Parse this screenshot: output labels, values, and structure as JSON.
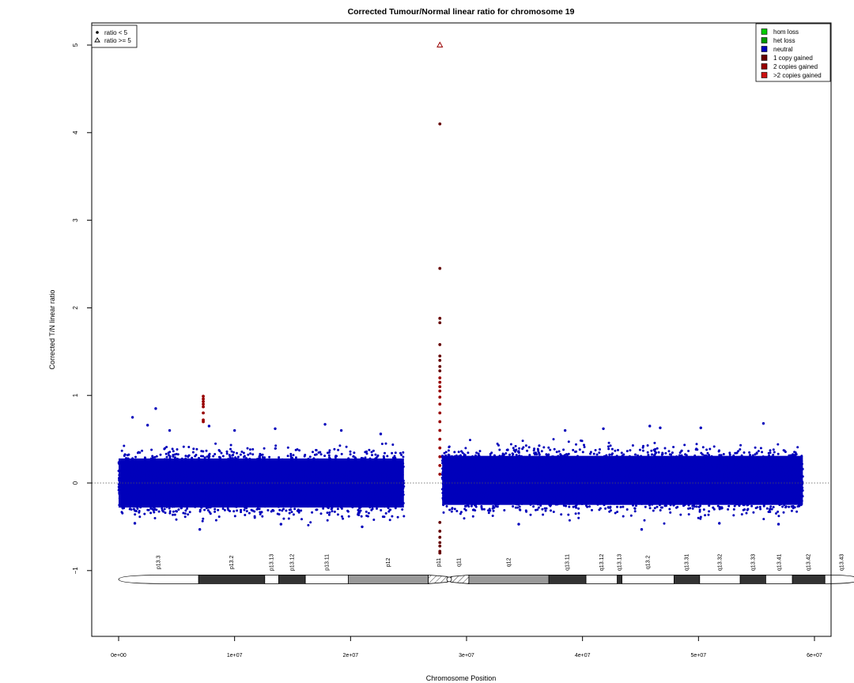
{
  "chart_data": {
    "type": "scatter",
    "title": "Corrected Tumour/Normal linear ratio for chromosome  19",
    "xlabel": "Chromosome Position",
    "ylabel": "Corrected T/N linear ratio",
    "xlim": [
      -1500000,
      61500000
    ],
    "ylim": [
      -1.75,
      5.25
    ],
    "x_ticks": [
      0,
      10000000,
      20000000,
      30000000,
      40000000,
      50000000,
      60000000
    ],
    "x_tick_labels": [
      "0e+00",
      "1e+07",
      "2e+07",
      "3e+07",
      "4e+07",
      "5e+07",
      "6e+07"
    ],
    "y_ticks": [
      -1,
      0,
      1,
      2,
      3,
      4,
      5
    ],
    "y_tick_labels": [
      "−1",
      "0",
      "1",
      "2",
      "3",
      "4",
      "5"
    ],
    "reference_line_y": 0,
    "shape_legend": {
      "placement": "top-left",
      "entries": [
        {
          "label": "ratio < 5",
          "symbol": "dot"
        },
        {
          "label": "ratio >= 5",
          "symbol": "triangle"
        }
      ]
    },
    "color_legend": {
      "placement": "top-right",
      "entries": [
        {
          "label": "hom loss",
          "color": "#00cc00"
        },
        {
          "label": "het loss",
          "color": "#009900"
        },
        {
          "label": "neutral",
          "color": "#0000bb"
        },
        {
          "label": "1 copy gained",
          "color": "#660000"
        },
        {
          "label": "2 copies gained",
          "color": "#990000"
        },
        {
          "label": ">2 copies gained",
          "color": "#cc1111"
        }
      ]
    },
    "series": [
      {
        "status": "neutral",
        "color": "#0000bb",
        "regions": [
          {
            "x_range": [
              0,
              24600000
            ],
            "y_center": 0.0,
            "y_spread": 0.28
          },
          {
            "x_range": [
              27900000,
              59000000
            ],
            "y_center": 0.03,
            "y_spread": 0.28
          }
        ],
        "outliers": [
          {
            "x": 1200000,
            "y": 0.75
          },
          {
            "x": 3200000,
            "y": 0.85
          },
          {
            "x": 2500000,
            "y": 0.66
          },
          {
            "x": 4400000,
            "y": 0.6
          },
          {
            "x": 7800000,
            "y": 0.65
          },
          {
            "x": 10000000,
            "y": 0.6
          },
          {
            "x": 13500000,
            "y": 0.62
          },
          {
            "x": 17800000,
            "y": 0.67
          },
          {
            "x": 19200000,
            "y": 0.6
          },
          {
            "x": 22600000,
            "y": 0.56
          },
          {
            "x": 38500000,
            "y": 0.6
          },
          {
            "x": 41800000,
            "y": 0.62
          },
          {
            "x": 45800000,
            "y": 0.65
          },
          {
            "x": 46700000,
            "y": 0.63
          },
          {
            "x": 50200000,
            "y": 0.63
          },
          {
            "x": 55600000,
            "y": 0.68
          },
          {
            "x": 1400000,
            "y": -0.46
          },
          {
            "x": 7000000,
            "y": -0.53
          },
          {
            "x": 14000000,
            "y": -0.47
          },
          {
            "x": 21000000,
            "y": -0.5
          },
          {
            "x": 34500000,
            "y": -0.47
          },
          {
            "x": 45100000,
            "y": -0.53
          },
          {
            "x": 51800000,
            "y": -0.46
          },
          {
            "x": 56900000,
            "y": -0.47
          }
        ]
      },
      {
        "status": "2 copies gained",
        "color": "#990000",
        "points": [
          {
            "x": 7300000,
            "y": 0.99
          },
          {
            "x": 7300000,
            "y": 0.96
          },
          {
            "x": 7300000,
            "y": 0.93
          },
          {
            "x": 7300000,
            "y": 0.9
          },
          {
            "x": 7300000,
            "y": 0.87
          },
          {
            "x": 7300000,
            "y": 0.8
          },
          {
            "x": 7300000,
            "y": 0.72
          },
          {
            "x": 7300000,
            "y": 0.7
          },
          {
            "x": 27700000,
            "y": 1.2
          },
          {
            "x": 27700000,
            "y": 1.15
          },
          {
            "x": 27700000,
            "y": 1.1
          },
          {
            "x": 27700000,
            "y": 1.05
          },
          {
            "x": 27700000,
            "y": 0.98
          },
          {
            "x": 27700000,
            "y": 0.9
          },
          {
            "x": 27700000,
            "y": 0.8
          },
          {
            "x": 27700000,
            "y": 0.7
          },
          {
            "x": 27700000,
            "y": 0.6
          },
          {
            "x": 27700000,
            "y": 0.5
          },
          {
            "x": 27700000,
            "y": 0.4
          },
          {
            "x": 27700000,
            "y": 0.3
          },
          {
            "x": 27700000,
            "y": 0.2
          },
          {
            "x": 27700000,
            "y": 0.1
          }
        ]
      },
      {
        "status": "1 copy gained",
        "color": "#660000",
        "points": [
          {
            "x": 27700000,
            "y": 4.1
          },
          {
            "x": 27700000,
            "y": 2.45
          },
          {
            "x": 27700000,
            "y": 1.88
          },
          {
            "x": 27700000,
            "y": 1.83
          },
          {
            "x": 27700000,
            "y": 1.58
          },
          {
            "x": 27700000,
            "y": 1.45
          },
          {
            "x": 27700000,
            "y": 1.4
          },
          {
            "x": 27700000,
            "y": 1.33
          },
          {
            "x": 27700000,
            "y": 1.28
          },
          {
            "x": 27700000,
            "y": -0.45
          },
          {
            "x": 27700000,
            "y": -0.55
          },
          {
            "x": 27700000,
            "y": -0.62
          },
          {
            "x": 27700000,
            "y": -0.68
          },
          {
            "x": 27700000,
            "y": -0.72
          },
          {
            "x": 27700000,
            "y": -0.78
          },
          {
            "x": 27700000,
            "y": -0.8
          }
        ]
      },
      {
        "status": "1 copy gained",
        "shape": "triangle",
        "color": "#990000",
        "points": [
          {
            "x": 27700000,
            "y": 5.0
          }
        ]
      }
    ],
    "ideogram": {
      "y": -1.1,
      "centromere_x": 28500000,
      "bands": [
        {
          "name": "p13.3",
          "start": 0,
          "end": 6900000,
          "stain": "gneg"
        },
        {
          "name": "p13.2",
          "start": 6900000,
          "end": 12600000,
          "stain": "gpos75"
        },
        {
          "name": "p13.13",
          "start": 12600000,
          "end": 13800000,
          "stain": "gneg"
        },
        {
          "name": "p13.12",
          "start": 13800000,
          "end": 16100000,
          "stain": "gpos75"
        },
        {
          "name": "p13.11",
          "start": 16100000,
          "end": 19800000,
          "stain": "gneg"
        },
        {
          "name": "p12",
          "start": 19800000,
          "end": 26700000,
          "stain": "gvar"
        },
        {
          "name": "p11",
          "start": 26700000,
          "end": 28500000,
          "stain": "acen"
        },
        {
          "name": "q11",
          "start": 28500000,
          "end": 30200000,
          "stain": "acen"
        },
        {
          "name": "q12",
          "start": 30200000,
          "end": 37100000,
          "stain": "gvar"
        },
        {
          "name": "q13.11",
          "start": 37100000,
          "end": 40300000,
          "stain": "gpos75"
        },
        {
          "name": "q13.12",
          "start": 40300000,
          "end": 43000000,
          "stain": "gneg"
        },
        {
          "name": "q13.13",
          "start": 43000000,
          "end": 43400000,
          "stain": "gpos75"
        },
        {
          "name": "q13.2",
          "start": 43400000,
          "end": 47900000,
          "stain": "gneg"
        },
        {
          "name": "q13.31",
          "start": 47900000,
          "end": 50100000,
          "stain": "gpos75"
        },
        {
          "name": "q13.32",
          "start": 50100000,
          "end": 53600000,
          "stain": "gneg"
        },
        {
          "name": "q13.33",
          "start": 53600000,
          "end": 55800000,
          "stain": "gpos75"
        },
        {
          "name": "q13.41",
          "start": 55800000,
          "end": 58100000,
          "stain": "gneg"
        },
        {
          "name": "q13.42",
          "start": 58100000,
          "end": 60900000,
          "stain": "gpos75"
        },
        {
          "name": "q13.43",
          "start": 60900000,
          "end": 63800000,
          "stain": "gneg"
        }
      ]
    }
  }
}
